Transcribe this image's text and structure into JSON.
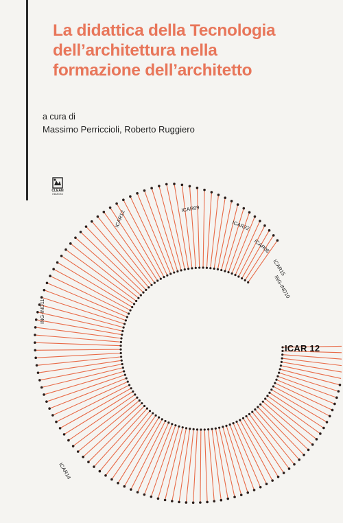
{
  "book": {
    "title_lines": [
      "La didattica della Tecnologia",
      "dell’architettura nella",
      "formazione dell’architetto"
    ],
    "editors_label": "a cura di",
    "editors": "Massimo Perriccioli, Roberto Ruggiero",
    "publisher_top": "CLEAN",
    "publisher_sub": "EDIZIONI"
  },
  "diagram": {
    "main_label": "ICAR 12",
    "labels": [
      "ICAR12",
      "ICAR09",
      "ICAR22",
      "ICAR08",
      "ICAR15",
      "ING-IND10",
      "ING-IND11",
      "ICAR14"
    ],
    "accent_color": "#e86a47",
    "dot_color": "#2a1e1b"
  }
}
